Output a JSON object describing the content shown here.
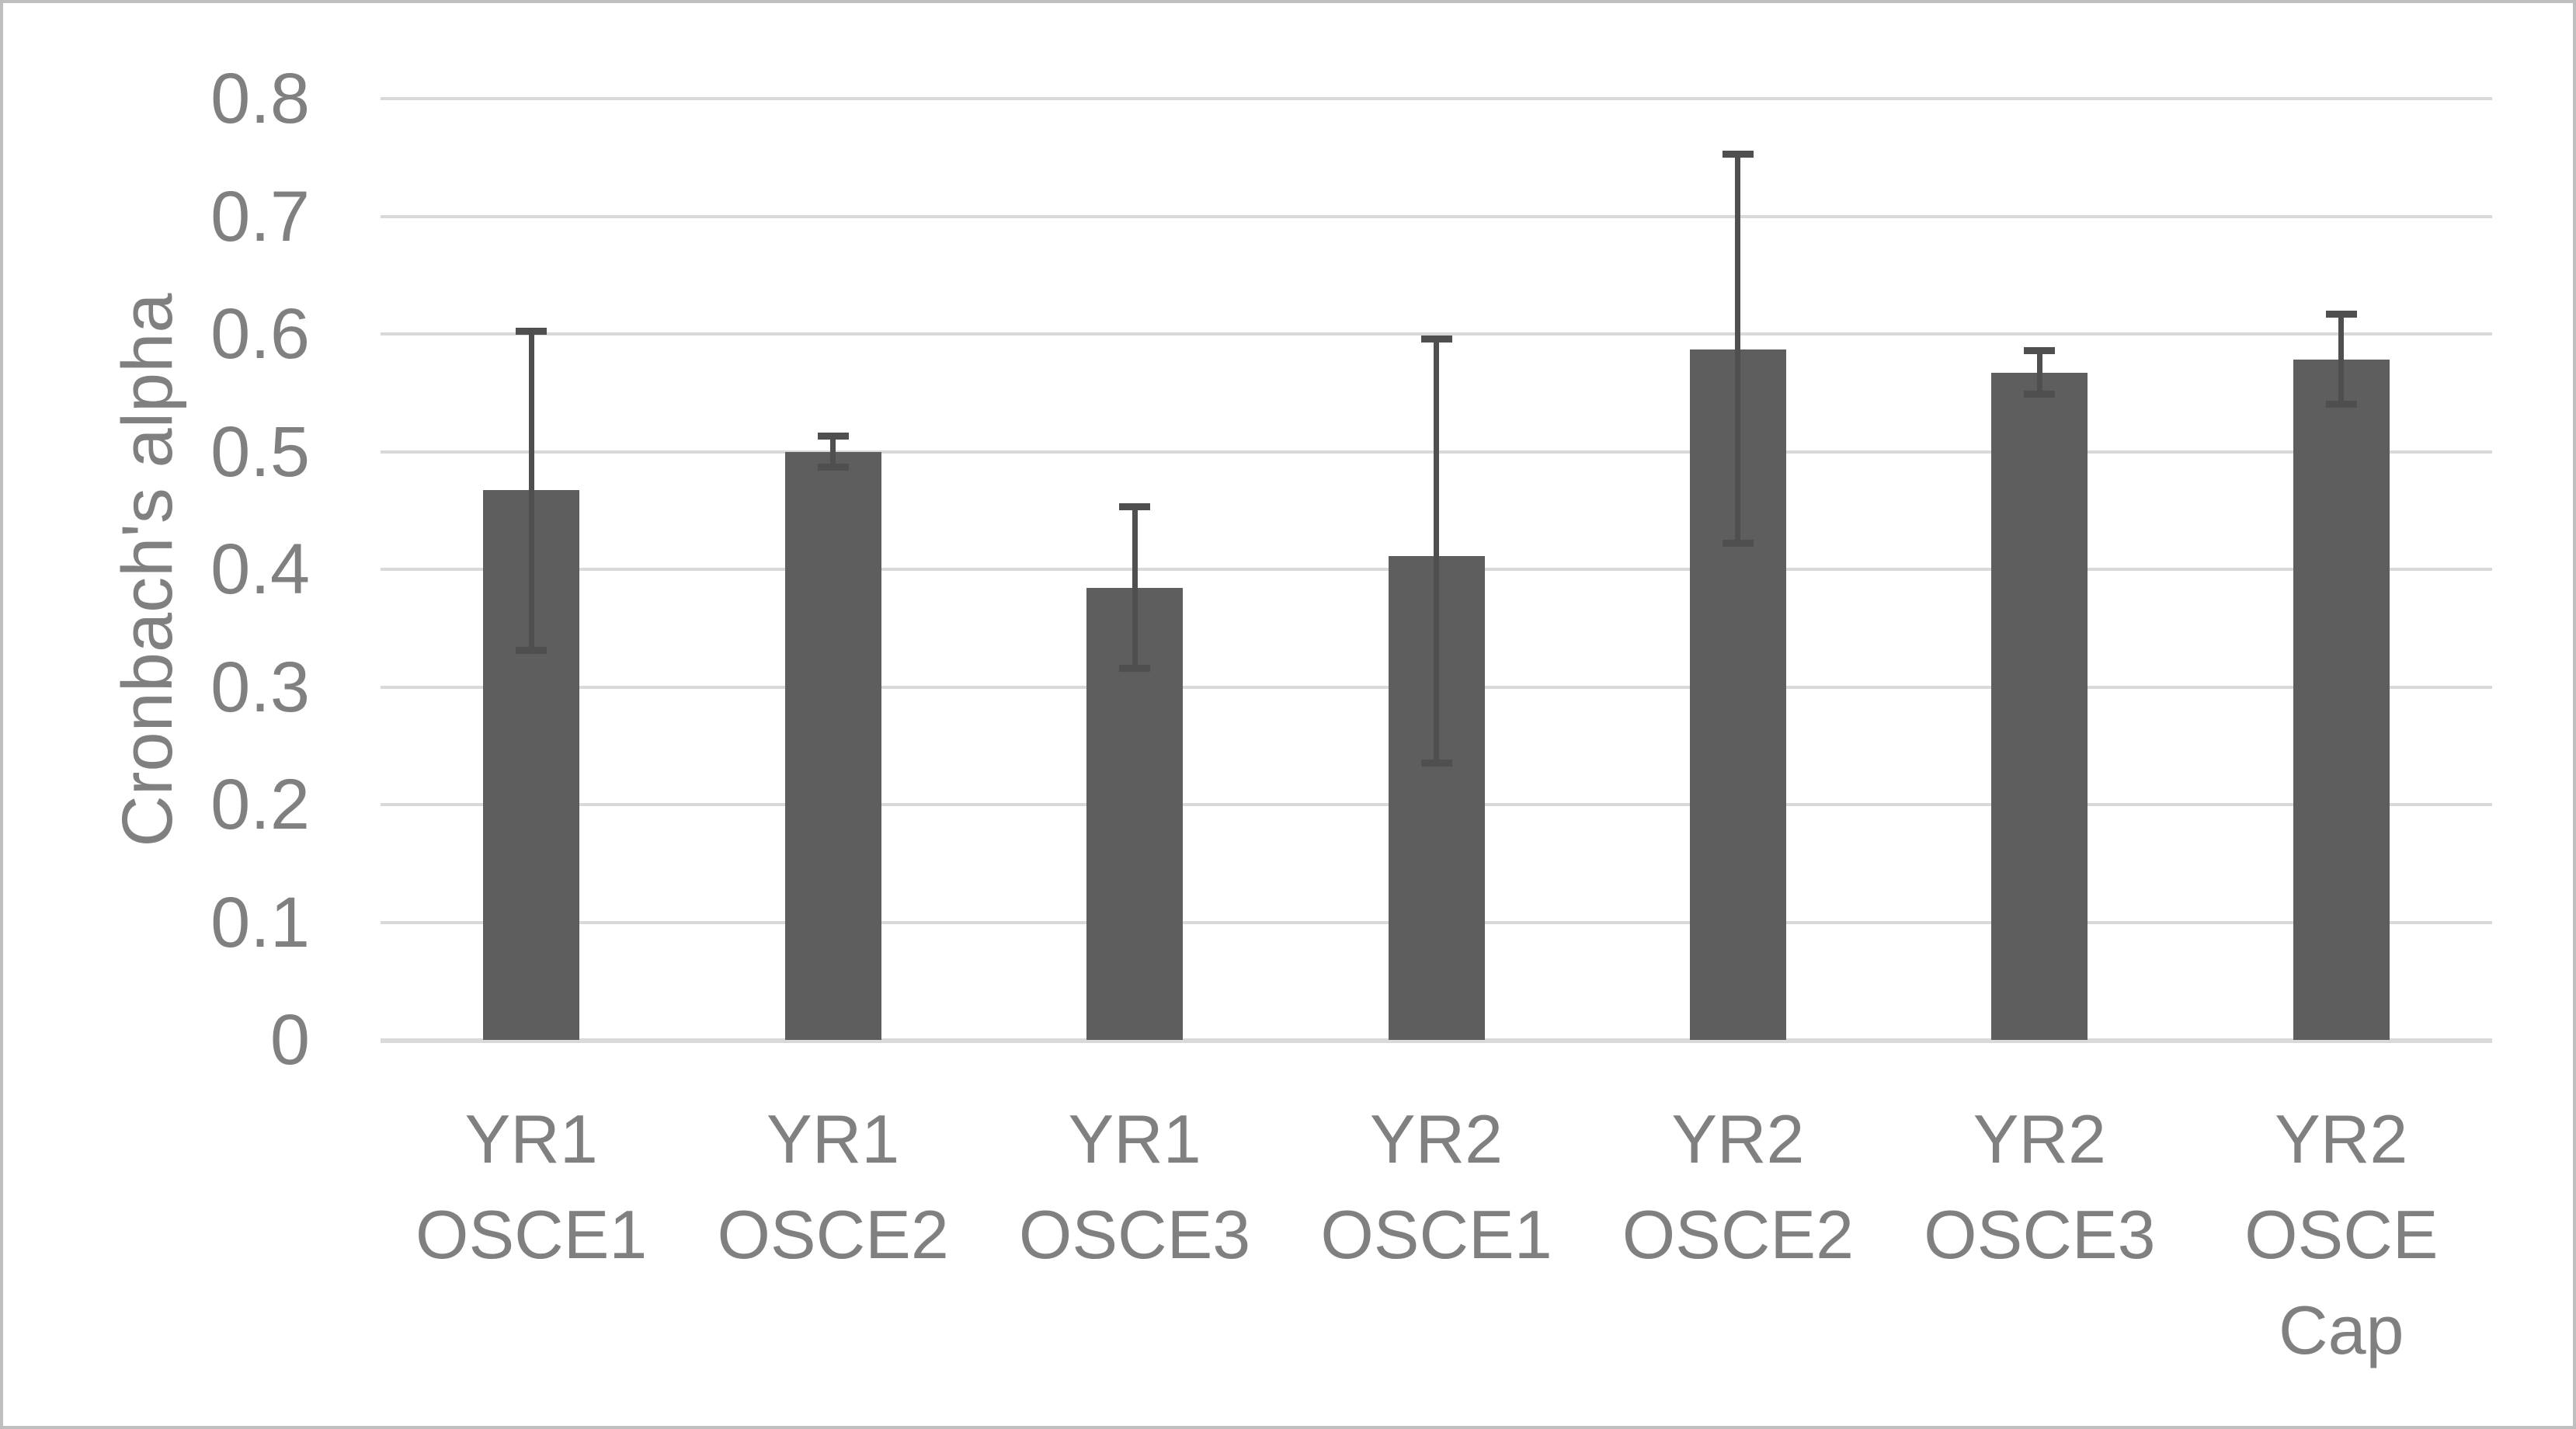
{
  "chart_data": {
    "type": "bar",
    "title": "",
    "ylabel": "Cronbach's alpha",
    "xlabel": "",
    "ylim": [
      0,
      0.8
    ],
    "ytick_step": 0.1,
    "ytick_labels": [
      "0",
      "0.1",
      "0.2",
      "0.3",
      "0.4",
      "0.5",
      "0.6",
      "0.7",
      "0.8"
    ],
    "grid": true,
    "legend": "none",
    "categories": [
      "YR1 OSCE1",
      "YR1 OSCE2",
      "YR1 OSCE3",
      "YR2 OSCE1",
      "YR2 OSCE2",
      "YR2 OSCE3",
      "YR2 OSCE Cap"
    ],
    "category_lines": [
      [
        "YR1",
        "OSCE1"
      ],
      [
        "YR1",
        "OSCE2"
      ],
      [
        "YR1",
        "OSCE3"
      ],
      [
        "YR2",
        "OSCE1"
      ],
      [
        "YR2",
        "OSCE2"
      ],
      [
        "YR2",
        "OSCE3"
      ],
      [
        "YR2",
        "OSCE",
        "Cap"
      ]
    ],
    "values": [
      0.467,
      0.5,
      0.384,
      0.411,
      0.587,
      0.567,
      0.578
    ],
    "error_low": [
      0.331,
      0.487,
      0.316,
      0.235,
      0.422,
      0.549,
      0.54
    ],
    "error_high": [
      0.602,
      0.513,
      0.453,
      0.596,
      0.753,
      0.586,
      0.617
    ],
    "colors": {
      "bar": "#5e5e5e",
      "error_bar": "#4f4f4f",
      "gridline": "#d9d9d9",
      "text": "#808080",
      "canvas_border": "#bfbfbf",
      "background": "#ffffff"
    }
  }
}
